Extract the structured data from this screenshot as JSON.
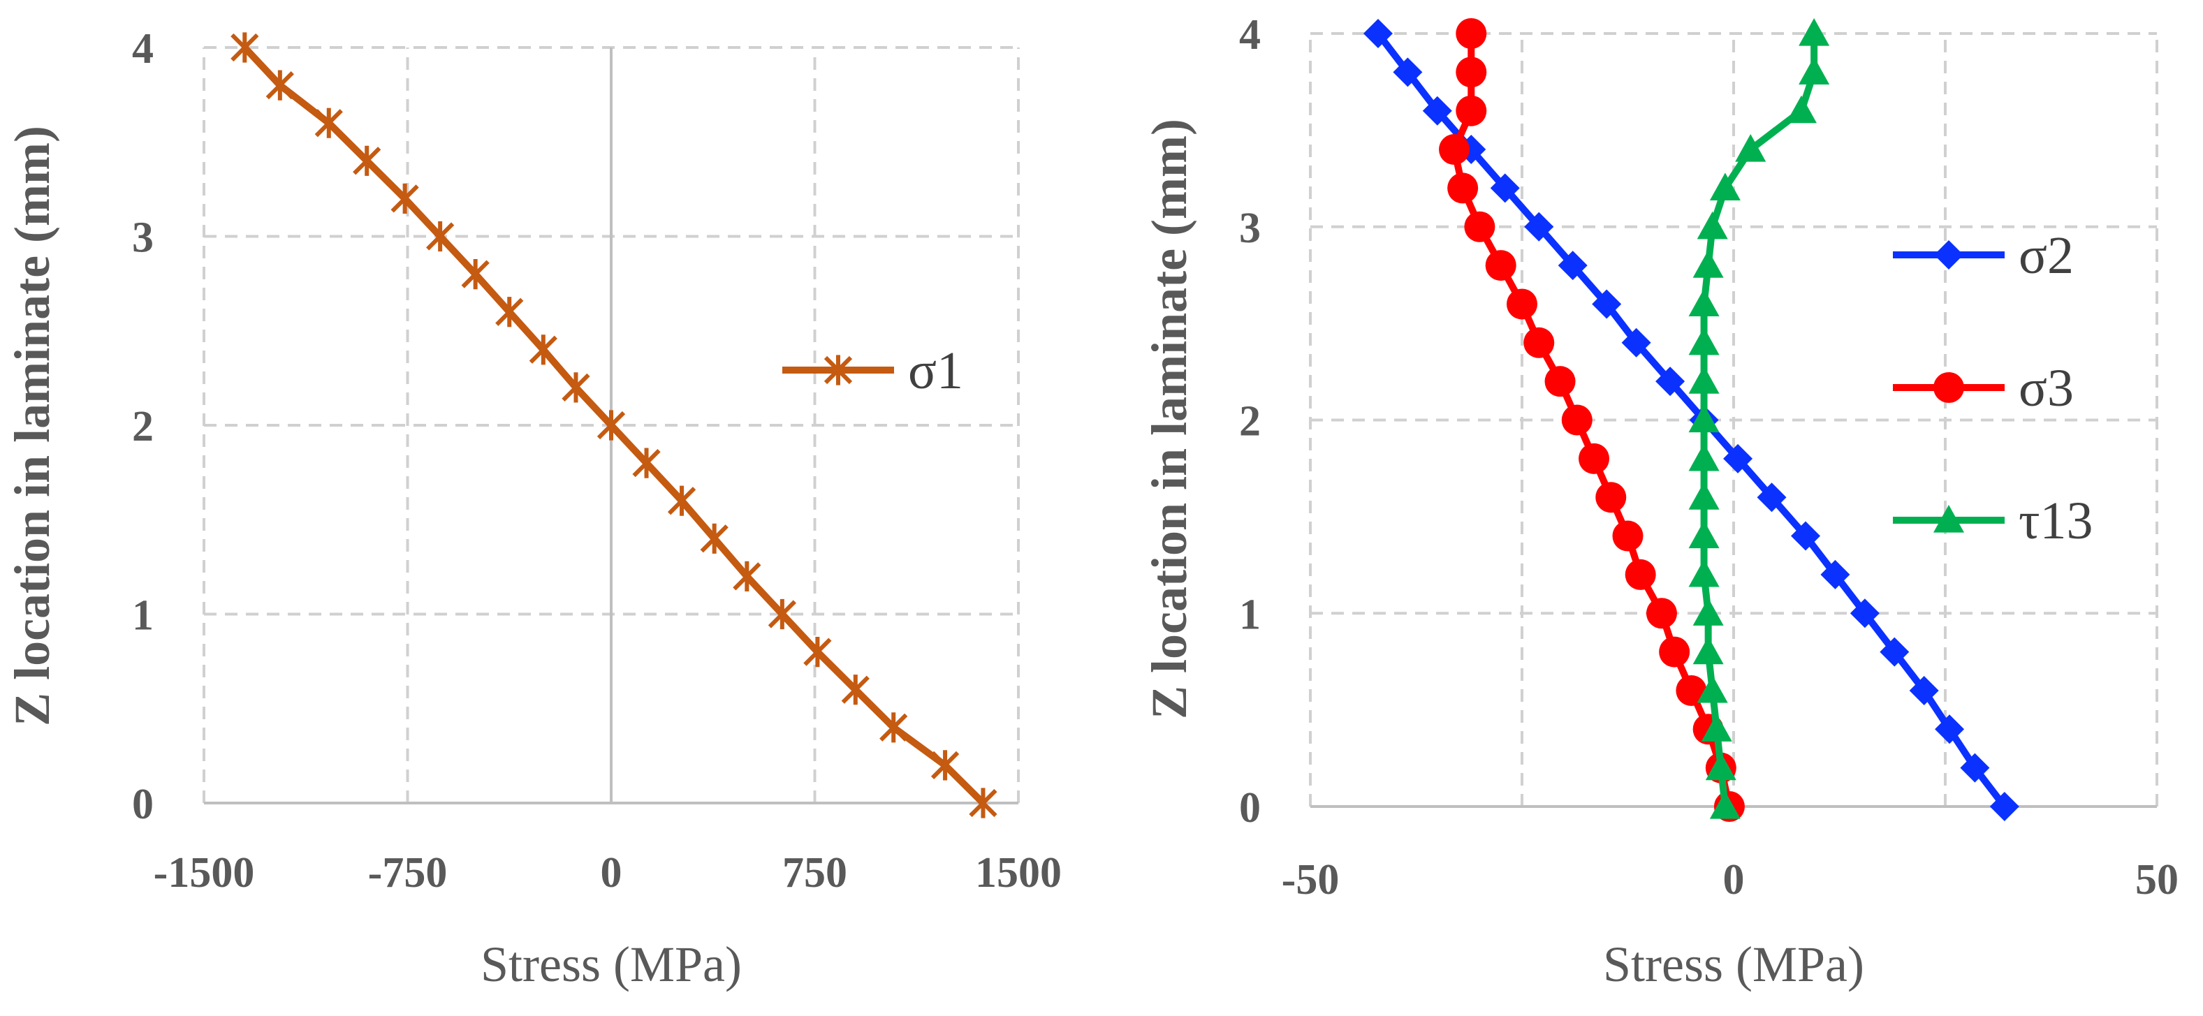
{
  "chart_data": [
    {
      "type": "line",
      "xlabel": "Stress (MPa)",
      "ylabel": "Z location in laminate (mm)",
      "xlim": [
        -1500,
        1500
      ],
      "ylim": [
        0,
        4
      ],
      "xticks": [
        "-1500",
        "-750",
        "0",
        "750",
        "1500"
      ],
      "yticks": [
        "0",
        "1",
        "2",
        "3",
        "4"
      ],
      "grid": true,
      "legend_position": "right",
      "series": [
        {
          "name": "σ1",
          "color": "#c55a11",
          "marker": "star-x",
          "points": [
            [
              1370,
              0
            ],
            [
              1230,
              0.2
            ],
            [
              1040,
              0.4
            ],
            [
              900,
              0.6
            ],
            [
              760,
              0.8
            ],
            [
              630,
              1.0
            ],
            [
              500,
              1.2
            ],
            [
              380,
              1.4
            ],
            [
              260,
              1.6
            ],
            [
              130,
              1.8
            ],
            [
              0,
              2.0
            ],
            [
              -130,
              2.2
            ],
            [
              -250,
              2.4
            ],
            [
              -375,
              2.6
            ],
            [
              -500,
              2.8
            ],
            [
              -630,
              3.0
            ],
            [
              -760,
              3.2
            ],
            [
              -900,
              3.4
            ],
            [
              -1040,
              3.6
            ],
            [
              -1220,
              3.8
            ],
            [
              -1350,
              4.0
            ]
          ]
        }
      ]
    },
    {
      "type": "line",
      "xlabel": "Stress (MPa)",
      "ylabel": "Z location in laminate (mm)",
      "xlim": [
        -50,
        50
      ],
      "ylim": [
        0,
        4
      ],
      "xticks": [
        "-50",
        "0",
        "50"
      ],
      "yticks": [
        "0",
        "1",
        "2",
        "3",
        "4"
      ],
      "grid": true,
      "legend_position": "right",
      "series": [
        {
          "name": "σ2",
          "color": "#0b31ff",
          "marker": "diamond",
          "points": [
            [
              32,
              0
            ],
            [
              28.5,
              0.2
            ],
            [
              25.5,
              0.4
            ],
            [
              22.5,
              0.6
            ],
            [
              19,
              0.8
            ],
            [
              15.5,
              1.0
            ],
            [
              12,
              1.2
            ],
            [
              8.5,
              1.4
            ],
            [
              4.5,
              1.6
            ],
            [
              0.5,
              1.8
            ],
            [
              -3.5,
              2.0
            ],
            [
              -7.5,
              2.2
            ],
            [
              -11.5,
              2.4
            ],
            [
              -15,
              2.6
            ],
            [
              -19,
              2.8
            ],
            [
              -23,
              3.0
            ],
            [
              -27,
              3.2
            ],
            [
              -31,
              3.4
            ],
            [
              -35,
              3.6
            ],
            [
              -38.5,
              3.8
            ],
            [
              -42,
              4.0
            ]
          ]
        },
        {
          "name": "σ3",
          "color": "#ff0000",
          "marker": "circle",
          "points": [
            [
              -0.5,
              0
            ],
            [
              -1.5,
              0.2
            ],
            [
              -3,
              0.4
            ],
            [
              -5,
              0.6
            ],
            [
              -7,
              0.8
            ],
            [
              -8.5,
              1.0
            ],
            [
              -11,
              1.2
            ],
            [
              -12.5,
              1.4
            ],
            [
              -14.5,
              1.6
            ],
            [
              -16.5,
              1.8
            ],
            [
              -18.5,
              2.0
            ],
            [
              -20.5,
              2.2
            ],
            [
              -23,
              2.4
            ],
            [
              -25,
              2.6
            ],
            [
              -27.5,
              2.8
            ],
            [
              -30,
              3.0
            ],
            [
              -32,
              3.2
            ],
            [
              -33,
              3.4
            ],
            [
              -31,
              3.6
            ],
            [
              -31,
              3.8
            ],
            [
              -31,
              4.0
            ]
          ]
        },
        {
          "name": "τ13",
          "color": "#00b050",
          "marker": "triangle",
          "points": [
            [
              -1,
              0
            ],
            [
              -1.5,
              0.2
            ],
            [
              -2,
              0.4
            ],
            [
              -2.5,
              0.6
            ],
            [
              -3,
              0.8
            ],
            [
              -3,
              1.0
            ],
            [
              -3.5,
              1.2
            ],
            [
              -3.5,
              1.4
            ],
            [
              -3.5,
              1.6
            ],
            [
              -3.5,
              1.8
            ],
            [
              -3.5,
              2.0
            ],
            [
              -3.5,
              2.2
            ],
            [
              -3.5,
              2.4
            ],
            [
              -3.5,
              2.6
            ],
            [
              -3,
              2.8
            ],
            [
              -2.5,
              3.0
            ],
            [
              -1,
              3.2
            ],
            [
              2,
              3.4
            ],
            [
              8,
              3.6
            ],
            [
              9.5,
              3.8
            ],
            [
              9.5,
              4.0
            ]
          ]
        }
      ]
    }
  ]
}
